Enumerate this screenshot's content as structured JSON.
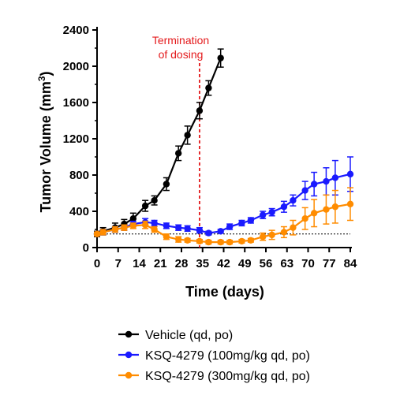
{
  "chart_data": {
    "type": "line",
    "xlabel": "Time (days)",
    "ylabel": "Tumor Volume (mm",
    "ylabel_sup": "3",
    "ylabel_close": ")",
    "xlim": [
      0,
      84
    ],
    "ylim": [
      0,
      2400
    ],
    "x_ticks": [
      0,
      7,
      14,
      21,
      28,
      35,
      42,
      49,
      56,
      63,
      70,
      77,
      84
    ],
    "y_ticks": [
      0,
      400,
      800,
      1200,
      1600,
      2000,
      2400
    ],
    "grid": false,
    "legend_position": "bottom",
    "annotation": {
      "lines": [
        "Termination",
        "of dosing"
      ],
      "x": 34,
      "color": "#e41a1c"
    },
    "baseline": {
      "y": 150,
      "style": "dotted"
    },
    "series": [
      {
        "name": "Vehicle (qd, po)",
        "color": "#000000",
        "x": [
          0,
          2,
          6,
          9,
          12,
          16,
          19,
          23,
          27,
          30,
          34,
          37,
          41
        ],
        "y": [
          150,
          180,
          220,
          260,
          320,
          460,
          520,
          700,
          1040,
          1240,
          1510,
          1760,
          2090
        ],
        "err": [
          30,
          40,
          50,
          50,
          60,
          60,
          50,
          70,
          80,
          100,
          90,
          80,
          100
        ]
      },
      {
        "name": "KSQ-4279 (100mg/kg qd, po)",
        "color": "#1a1aff",
        "x": [
          0,
          2,
          6,
          9,
          12,
          16,
          19,
          23,
          27,
          30,
          34,
          37,
          41,
          44,
          48,
          51,
          55,
          58,
          62,
          65,
          69,
          72,
          76,
          79,
          84
        ],
        "y": [
          150,
          170,
          200,
          220,
          260,
          280,
          270,
          240,
          220,
          210,
          190,
          160,
          180,
          230,
          270,
          300,
          360,
          390,
          450,
          520,
          630,
          700,
          730,
          770,
          810
        ],
        "err": [
          20,
          30,
          30,
          30,
          30,
          40,
          30,
          30,
          30,
          30,
          30,
          20,
          20,
          30,
          30,
          30,
          40,
          40,
          60,
          60,
          100,
          130,
          150,
          190,
          190
        ]
      },
      {
        "name": "KSQ-4279 (300mg/kg qd, po)",
        "color": "#ff8c00",
        "x": [
          0,
          2,
          6,
          9,
          12,
          16,
          19,
          23,
          27,
          30,
          34,
          37,
          41,
          44,
          48,
          51,
          55,
          58,
          62,
          65,
          69,
          72,
          76,
          79,
          84
        ],
        "y": [
          150,
          170,
          200,
          220,
          240,
          250,
          200,
          120,
          90,
          80,
          70,
          60,
          60,
          60,
          70,
          80,
          120,
          140,
          170,
          220,
          320,
          380,
          420,
          450,
          480
        ],
        "err": [
          20,
          30,
          30,
          30,
          30,
          40,
          30,
          30,
          30,
          20,
          20,
          20,
          20,
          20,
          20,
          20,
          40,
          50,
          60,
          80,
          120,
          150,
          160,
          180,
          180
        ]
      }
    ]
  }
}
